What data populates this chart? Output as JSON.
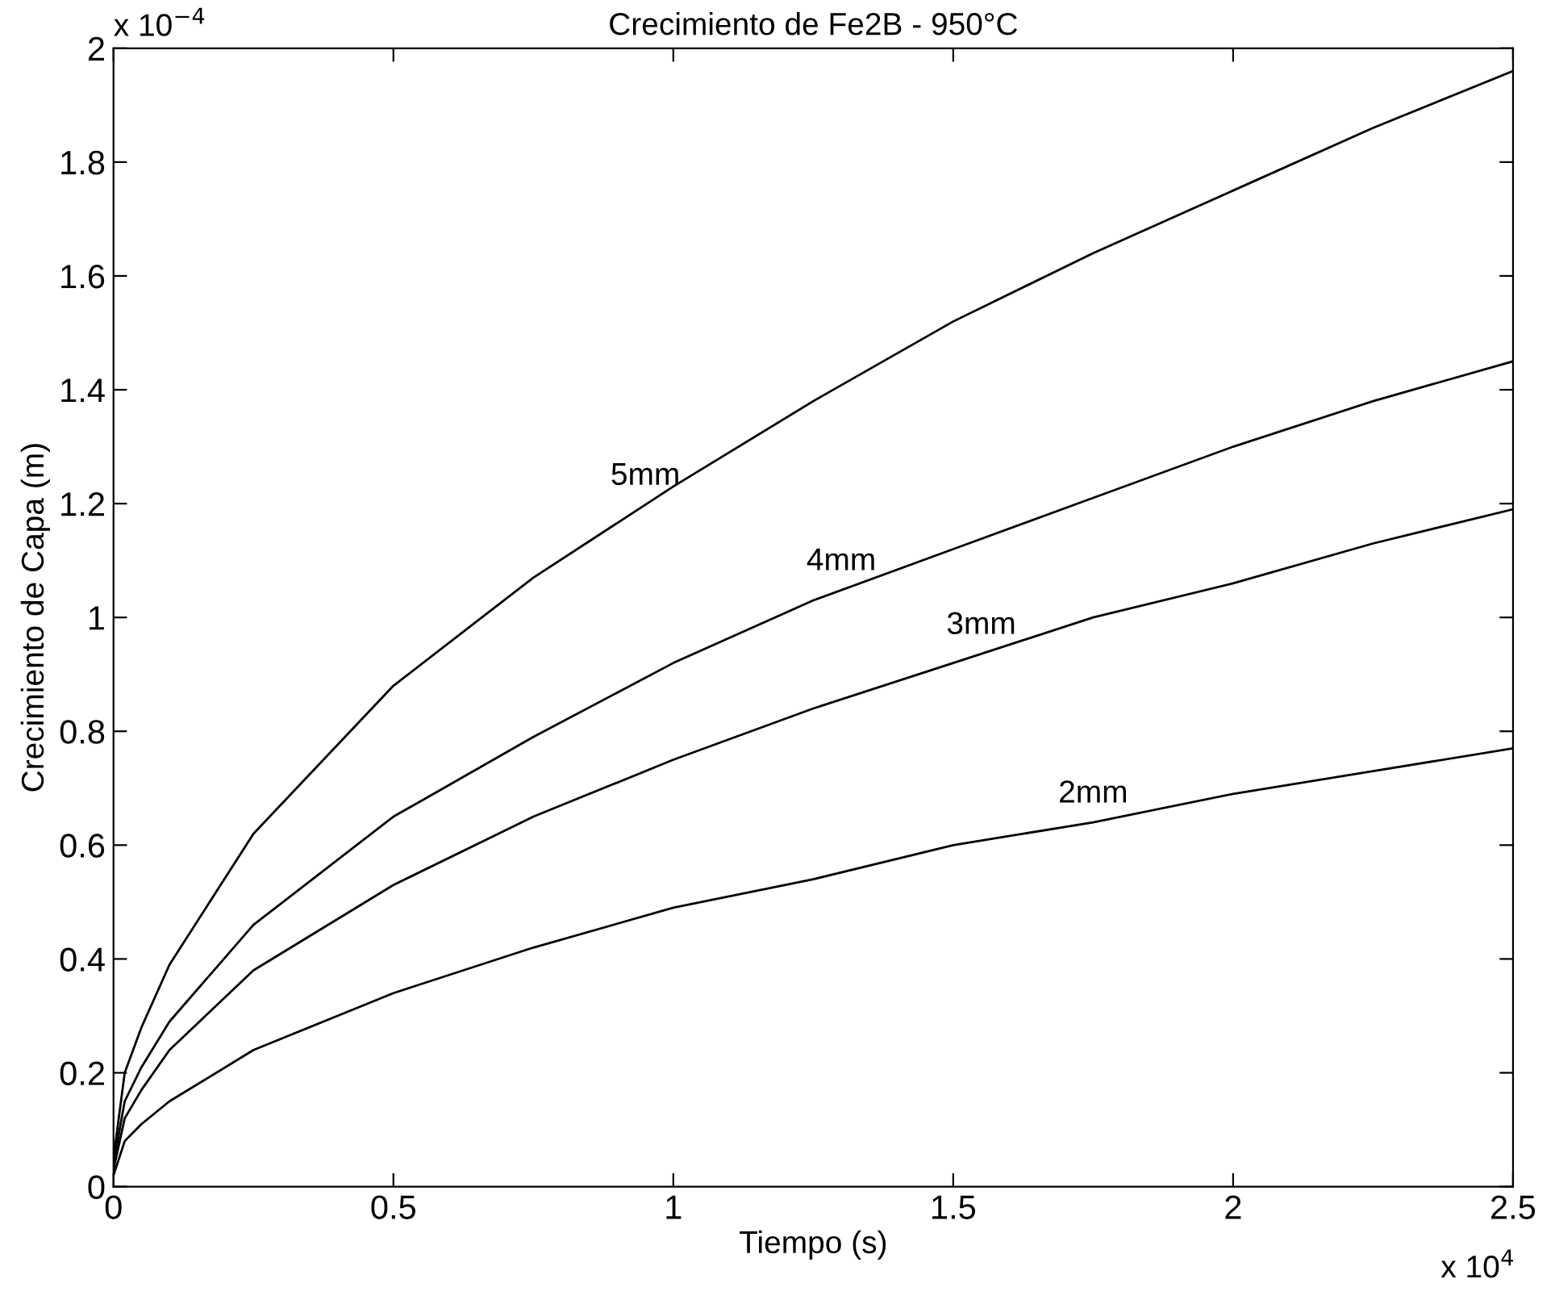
{
  "chart_data": {
    "type": "line",
    "title": "Crecimiento de Fe2B - 950°C",
    "xlabel": "Tiempo (s)",
    "ylabel": "Crecimiento de Capa (m)",
    "annotations": [
      "x 10$^{−4}$",
      "x 10$^{4}$"
    ],
    "x": [
      0,
      0.02,
      0.05,
      0.1,
      0.25,
      0.5,
      0.75,
      1,
      1.25,
      1.5,
      1.75,
      2,
      2.25,
      2.5
    ],
    "series": [
      {
        "name": "5mm",
        "color": "#000000",
        "values": [
          0.05,
          0.2,
          0.28,
          0.39,
          0.62,
          0.88,
          1.07,
          1.23,
          1.38,
          1.52,
          1.64,
          1.75,
          1.86,
          1.96
        ]
      },
      {
        "name": "4mm",
        "color": "#000000",
        "values": [
          0.04,
          0.15,
          0.21,
          0.29,
          0.46,
          0.65,
          0.79,
          0.92,
          1.03,
          1.12,
          1.21,
          1.3,
          1.38,
          1.45
        ]
      },
      {
        "name": "3mm",
        "color": "#000000",
        "values": [
          0.03,
          0.12,
          0.17,
          0.24,
          0.38,
          0.53,
          0.65,
          0.75,
          0.84,
          0.92,
          1.0,
          1.06,
          1.13,
          1.19
        ]
      },
      {
        "name": "2mm",
        "color": "#000000",
        "values": [
          0.02,
          0.08,
          0.11,
          0.15,
          0.24,
          0.34,
          0.42,
          0.49,
          0.54,
          0.6,
          0.64,
          0.69,
          0.73,
          0.77
        ]
      }
    ],
    "xlim": [
      0,
      2.5
    ],
    "xticks": [
      0,
      0.5,
      1,
      1.5,
      2,
      2.5
    ],
    "ylim": [
      0,
      2
    ],
    "yticks": [
      0,
      0.2,
      0.4,
      0.6,
      0.8,
      1,
      1.2,
      1.4,
      1.6,
      1.8,
      2
    ],
    "grid": false,
    "legend": false,
    "marker": "none",
    "line_style": "solid"
  }
}
